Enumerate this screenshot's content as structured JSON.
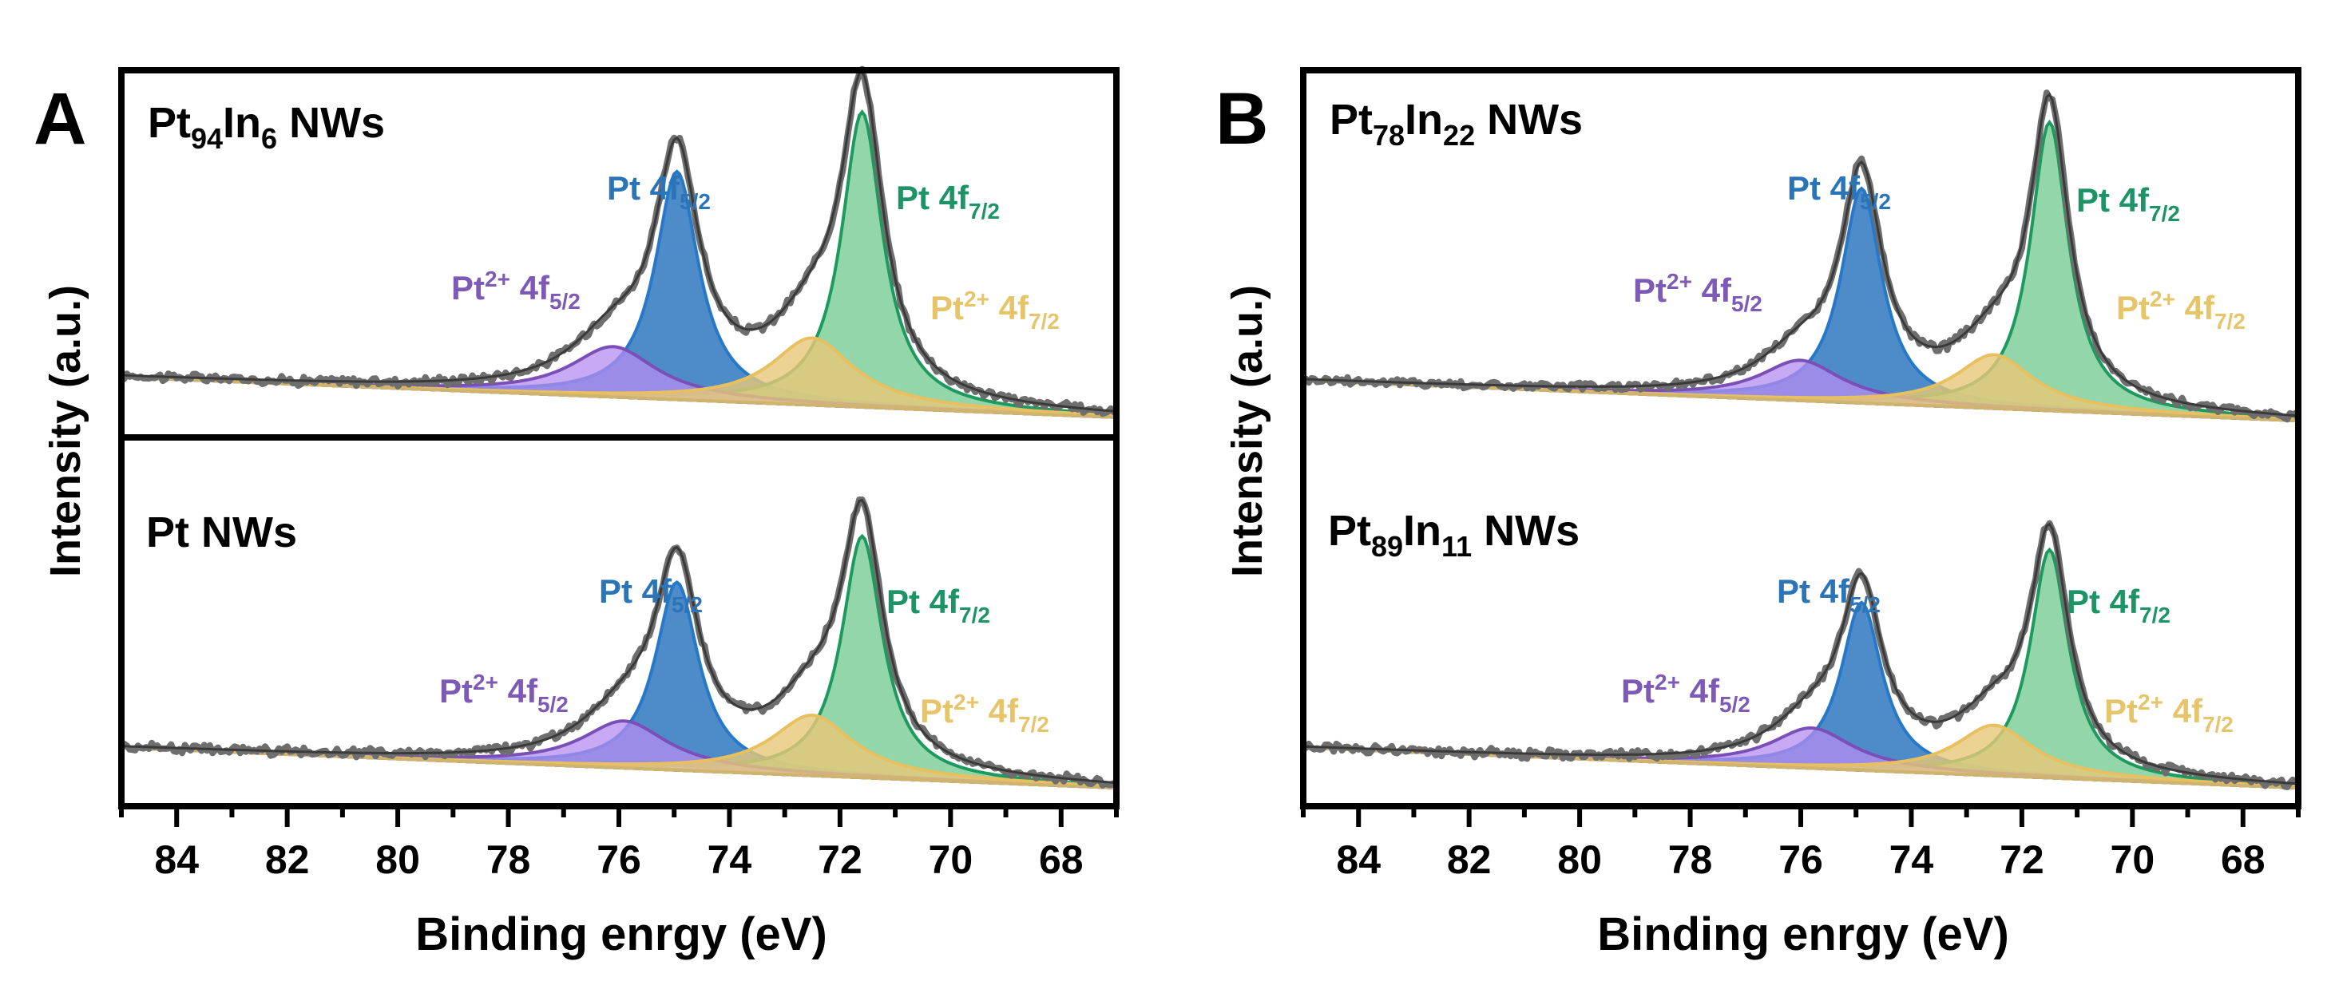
{
  "colors": {
    "pt_metal": "#2878c8",
    "pt_metal_fill": "#2f78c0",
    "pt_metal_7": "#1f9a5e",
    "pt_metal_7_fill": "#7fcf9a",
    "pt2_5": "#7a4fb8",
    "pt2_5_fill": "#b48cf0",
    "pt2_7": "#e8c060",
    "pt2_7_fill": "#e8c878",
    "envelope": "#505050",
    "raw": "#6e6e6e",
    "label_pt5": "#2b74b8",
    "label_pt7": "#1e9466",
    "label_pt2_5": "#7d5ab5",
    "label_pt2_7": "#e6c46a"
  },
  "chart_data": [
    {
      "type": "line",
      "panel_letter": "A",
      "xlabel": "Binding enrgy (eV)",
      "ylabel": "Intensity (a.u.)",
      "xlim": [
        85,
        67
      ],
      "x_ticks": [
        "84",
        "82",
        "80",
        "78",
        "76",
        "74",
        "72",
        "70",
        "68"
      ],
      "peak_labels": {
        "pt_5": {
          "main": "Pt 4f",
          "sub": "5/2"
        },
        "pt_7": {
          "main": "Pt 4f",
          "sub": "7/2"
        },
        "pt2_5": {
          "main": "Pt",
          "sup": "2+",
          "orb": " 4f",
          "sub": "5/2"
        },
        "pt2_7": {
          "main": "Pt",
          "sup": "2+",
          "orb": " 4f",
          "sub": "7/2"
        }
      },
      "subpanels": [
        {
          "sample": {
            "p1": "Pt",
            "s1": "94",
            "p2": "In",
            "s2": "6",
            "p3": " NWs"
          },
          "baseline": {
            "start": 0.18,
            "end": 0.06
          },
          "peaks": [
            {
              "name": "Pt 4f5/2",
              "center": 74.95,
              "height": 0.68,
              "width": 0.48
            },
            {
              "name": "Pt 4f7/2",
              "center": 71.6,
              "height": 0.88,
              "width": 0.45
            },
            {
              "name": "Pt2+ 4f5/2",
              "center": 76.1,
              "height": 0.15,
              "width": 0.95
            },
            {
              "name": "Pt2+ 4f7/2",
              "center": 72.5,
              "height": 0.2,
              "width": 0.9
            }
          ]
        },
        {
          "sample": {
            "p1": "Pt NWs",
            "s1": "",
            "p2": "",
            "s2": "",
            "p3": ""
          },
          "baseline": {
            "start": 0.17,
            "end": 0.05
          },
          "peaks": [
            {
              "name": "Pt 4f5/2",
              "center": 74.95,
              "height": 0.56,
              "width": 0.48
            },
            {
              "name": "Pt 4f7/2",
              "center": 71.6,
              "height": 0.72,
              "width": 0.45
            },
            {
              "name": "Pt2+ 4f5/2",
              "center": 75.9,
              "height": 0.14,
              "width": 0.95
            },
            {
              "name": "Pt2+ 4f7/2",
              "center": 72.5,
              "height": 0.18,
              "width": 0.9
            }
          ]
        }
      ]
    },
    {
      "type": "line",
      "panel_letter": "B",
      "xlabel": "Binding enrgy (eV)",
      "ylabel": "Intensity (a.u.)",
      "xlim": [
        85,
        67
      ],
      "x_ticks": [
        "84",
        "82",
        "80",
        "78",
        "76",
        "74",
        "72",
        "70",
        "68"
      ],
      "peak_labels": {
        "pt_5": {
          "main": "Pt 4f",
          "sub": "5/2"
        },
        "pt_7": {
          "main": "Pt 4f",
          "sub": "7/2"
        },
        "pt2_5": {
          "main": "Pt",
          "sup": "2+",
          "orb": " 4f",
          "sub": "5/2"
        },
        "pt2_7": {
          "main": "Pt",
          "sup": "2+",
          "orb": " 4f",
          "sub": "7/2"
        }
      },
      "subpanels": [
        {
          "sample": {
            "p1": "Pt",
            "s1": "78",
            "p2": "In",
            "s2": "22",
            "p3": " NWs"
          },
          "baseline": {
            "start": 0.17,
            "end": 0.05
          },
          "peaks": [
            {
              "name": "Pt 4f5/2",
              "center": 74.9,
              "height": 0.64,
              "width": 0.45
            },
            {
              "name": "Pt 4f7/2",
              "center": 71.5,
              "height": 0.86,
              "width": 0.42
            },
            {
              "name": "Pt2+ 4f5/2",
              "center": 76.0,
              "height": 0.12,
              "width": 0.9
            },
            {
              "name": "Pt2+ 4f7/2",
              "center": 72.5,
              "height": 0.16,
              "width": 0.85
            }
          ]
        },
        {
          "sample": {
            "p1": "Pt",
            "s1": "89",
            "p2": "In",
            "s2": "11",
            "p3": " NWs"
          },
          "baseline": {
            "start": 0.17,
            "end": 0.05
          },
          "peaks": [
            {
              "name": "Pt 4f5/2",
              "center": 74.9,
              "height": 0.5,
              "width": 0.45
            },
            {
              "name": "Pt 4f7/2",
              "center": 71.5,
              "height": 0.68,
              "width": 0.42
            },
            {
              "name": "Pt2+ 4f5/2",
              "center": 75.8,
              "height": 0.12,
              "width": 0.9
            },
            {
              "name": "Pt2+ 4f7/2",
              "center": 72.5,
              "height": 0.15,
              "width": 0.85
            }
          ]
        }
      ]
    }
  ]
}
